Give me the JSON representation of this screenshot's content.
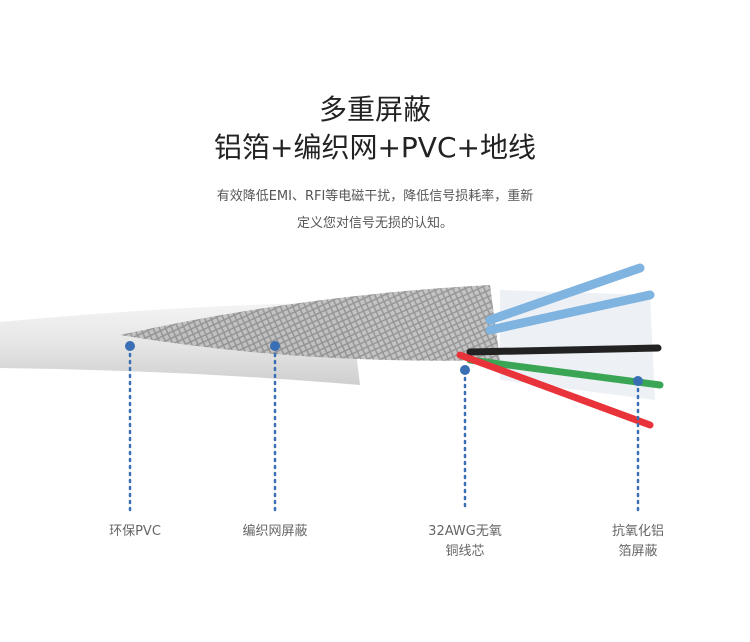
{
  "heading": {
    "line1": "多重屏蔽",
    "line2": "铝箔+编织网+PVC+地线"
  },
  "description": {
    "line1": "有效降低EMI、RFI等电磁干扰，降低信号损耗率，重新",
    "line2": "定义您对信号无损的认知。"
  },
  "labels": [
    {
      "line1": "环保PVC",
      "line2": ""
    },
    {
      "line1": "编织网屏蔽",
      "line2": ""
    },
    {
      "line1": "32AWG无氧",
      "line2": "铜线芯"
    },
    {
      "line1": "抗氧化铝",
      "line2": "箔屏蔽"
    }
  ],
  "colors": {
    "marker": "#3a6fb5",
    "wire_red": "#e8333a",
    "wire_green": "#3aa655",
    "wire_black": "#222222",
    "wire_blue": "#7fb3e0"
  }
}
